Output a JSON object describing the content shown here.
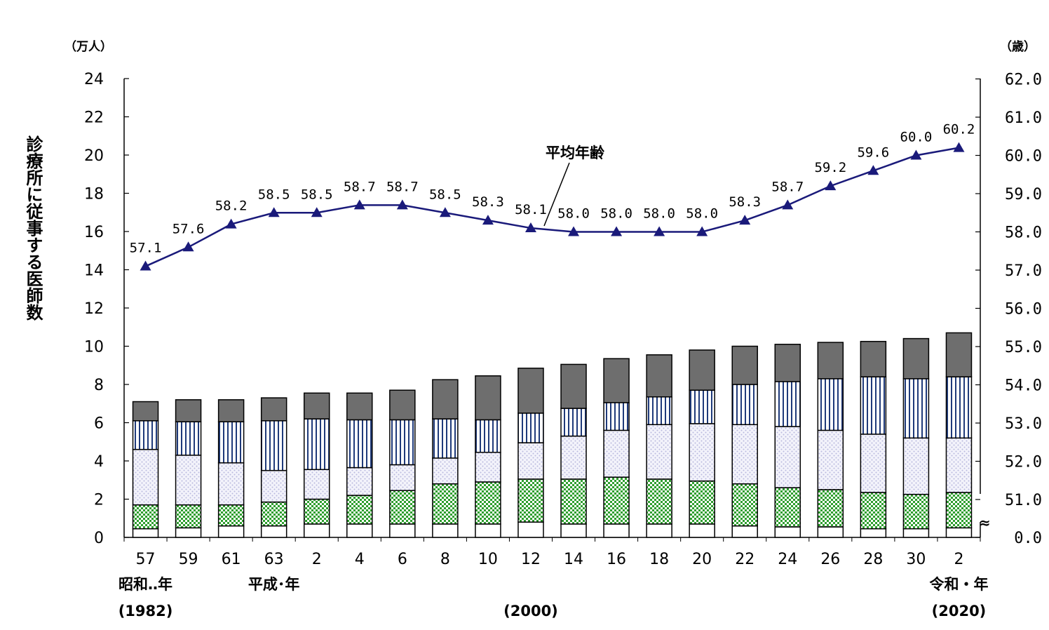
{
  "chart_data": {
    "type": "bar",
    "stacked": true,
    "categories": [
      "57",
      "59",
      "61",
      "63",
      "2",
      "4",
      "6",
      "8",
      "10",
      "12",
      "14",
      "16",
      "18",
      "20",
      "22",
      "24",
      "26",
      "28",
      "30",
      "2"
    ],
    "era_labels": [
      {
        "index": 0,
        "text": "昭和‥年"
      },
      {
        "index": 3,
        "text": "平成･年"
      },
      {
        "index": 19,
        "text": "令和・年"
      }
    ],
    "year_labels": [
      {
        "index": 0,
        "text": "(1982)"
      },
      {
        "index": 9,
        "text": "(2000)"
      },
      {
        "index": 19,
        "text": "(2020)"
      }
    ],
    "ylabel": "診療所に従事する医師数",
    "y_unit": "（万人）",
    "ylim": [
      0,
      24
    ],
    "y_ticks": [
      "0",
      "2",
      "4",
      "6",
      "8",
      "10",
      "12",
      "14",
      "16",
      "18",
      "20",
      "22",
      "24"
    ],
    "y2_unit": "（歳）",
    "y2lim": [
      50.0,
      62.0
    ],
    "y2_ticks": [
      "0.0",
      "51.0",
      "52.0",
      "53.0",
      "54.0",
      "55.0",
      "56.0",
      "57.0",
      "58.0",
      "59.0",
      "60.0",
      "61.0",
      "62.0"
    ],
    "y2_break": true,
    "grid": false,
    "series": [
      {
        "pattern": "white",
        "color": "#ffffff",
        "values": [
          0.45,
          0.5,
          0.6,
          0.6,
          0.7,
          0.7,
          0.7,
          0.7,
          0.7,
          0.8,
          0.7,
          0.7,
          0.7,
          0.7,
          0.6,
          0.55,
          0.55,
          0.45,
          0.45,
          0.5
        ]
      },
      {
        "pattern": "green-check",
        "color": "#2e9e2e",
        "values": [
          1.25,
          1.2,
          1.1,
          1.25,
          1.3,
          1.5,
          1.75,
          2.1,
          2.2,
          2.25,
          2.35,
          2.45,
          2.35,
          2.25,
          2.2,
          2.05,
          1.95,
          1.9,
          1.8,
          1.85
        ]
      },
      {
        "pattern": "lavender-dots",
        "color": "#d6d6ee",
        "values": [
          2.9,
          2.6,
          2.2,
          1.65,
          1.55,
          1.45,
          1.35,
          1.35,
          1.55,
          1.9,
          2.25,
          2.45,
          2.85,
          3.0,
          3.1,
          3.2,
          3.1,
          3.05,
          2.95,
          2.85
        ]
      },
      {
        "pattern": "navy-vertical-stripes",
        "color": "#1f3a7a",
        "values": [
          1.5,
          1.75,
          2.15,
          2.6,
          2.65,
          2.5,
          2.35,
          2.05,
          1.7,
          1.55,
          1.45,
          1.45,
          1.45,
          1.75,
          2.1,
          2.35,
          2.7,
          3.0,
          3.1,
          3.2
        ]
      },
      {
        "pattern": "gray",
        "color": "#6e6e6e",
        "values": [
          1.0,
          1.15,
          1.15,
          1.2,
          1.35,
          1.4,
          1.55,
          2.05,
          2.3,
          2.35,
          2.3,
          2.3,
          2.2,
          2.1,
          2.0,
          1.95,
          1.9,
          1.85,
          2.1,
          2.3
        ]
      }
    ],
    "line": {
      "name": "平均年齢",
      "axis": "right",
      "color": "#1a1a7a",
      "marker": "triangle",
      "values": [
        57.1,
        57.6,
        58.2,
        58.5,
        58.5,
        58.7,
        58.7,
        58.5,
        58.3,
        58.1,
        58.0,
        58.0,
        58.0,
        58.0,
        58.3,
        58.7,
        59.2,
        59.6,
        60.0,
        60.2
      ],
      "labels": [
        "57.1",
        "57.6",
        "58.2",
        "58.5",
        "58.5",
        "58.7",
        "58.7",
        "58.5",
        "58.3",
        "58.1",
        "58.0",
        "58.0",
        "58.0",
        "58.0",
        "58.3",
        "58.7",
        "59.2",
        "59.6",
        "60.0",
        "60.2"
      ]
    }
  }
}
